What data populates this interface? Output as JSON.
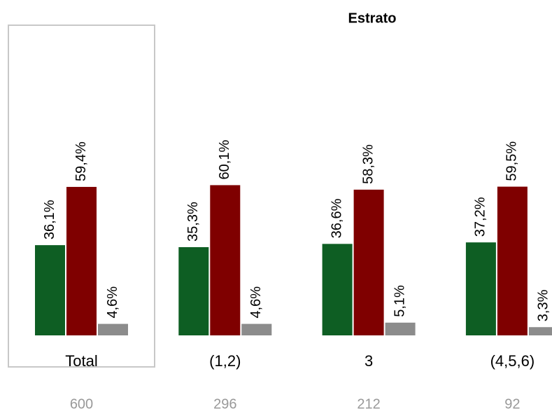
{
  "chart_data": {
    "type": "bar",
    "title": "Estrato",
    "categories": [
      "Total",
      "(1,2)",
      "3",
      "(4,5,6)"
    ],
    "counts": [
      600,
      296,
      212,
      92
    ],
    "series": [
      {
        "color": "#0e5e23",
        "values": [
          36.1,
          35.3,
          36.6,
          37.2
        ],
        "value_labels": [
          "36,1%",
          "35,3%",
          "36,6%",
          "37,2%"
        ]
      },
      {
        "color": "#7f0000",
        "values": [
          59.4,
          60.1,
          58.3,
          59.5
        ],
        "value_labels": [
          "59,4%",
          "60,1%",
          "58,3%",
          "59,5%"
        ]
      },
      {
        "color": "#8c8c8c",
        "values": [
          4.6,
          4.6,
          5.1,
          3.3
        ],
        "value_labels": [
          "4,6%",
          "4,6%",
          "5,1%",
          "3,3%"
        ]
      }
    ]
  }
}
